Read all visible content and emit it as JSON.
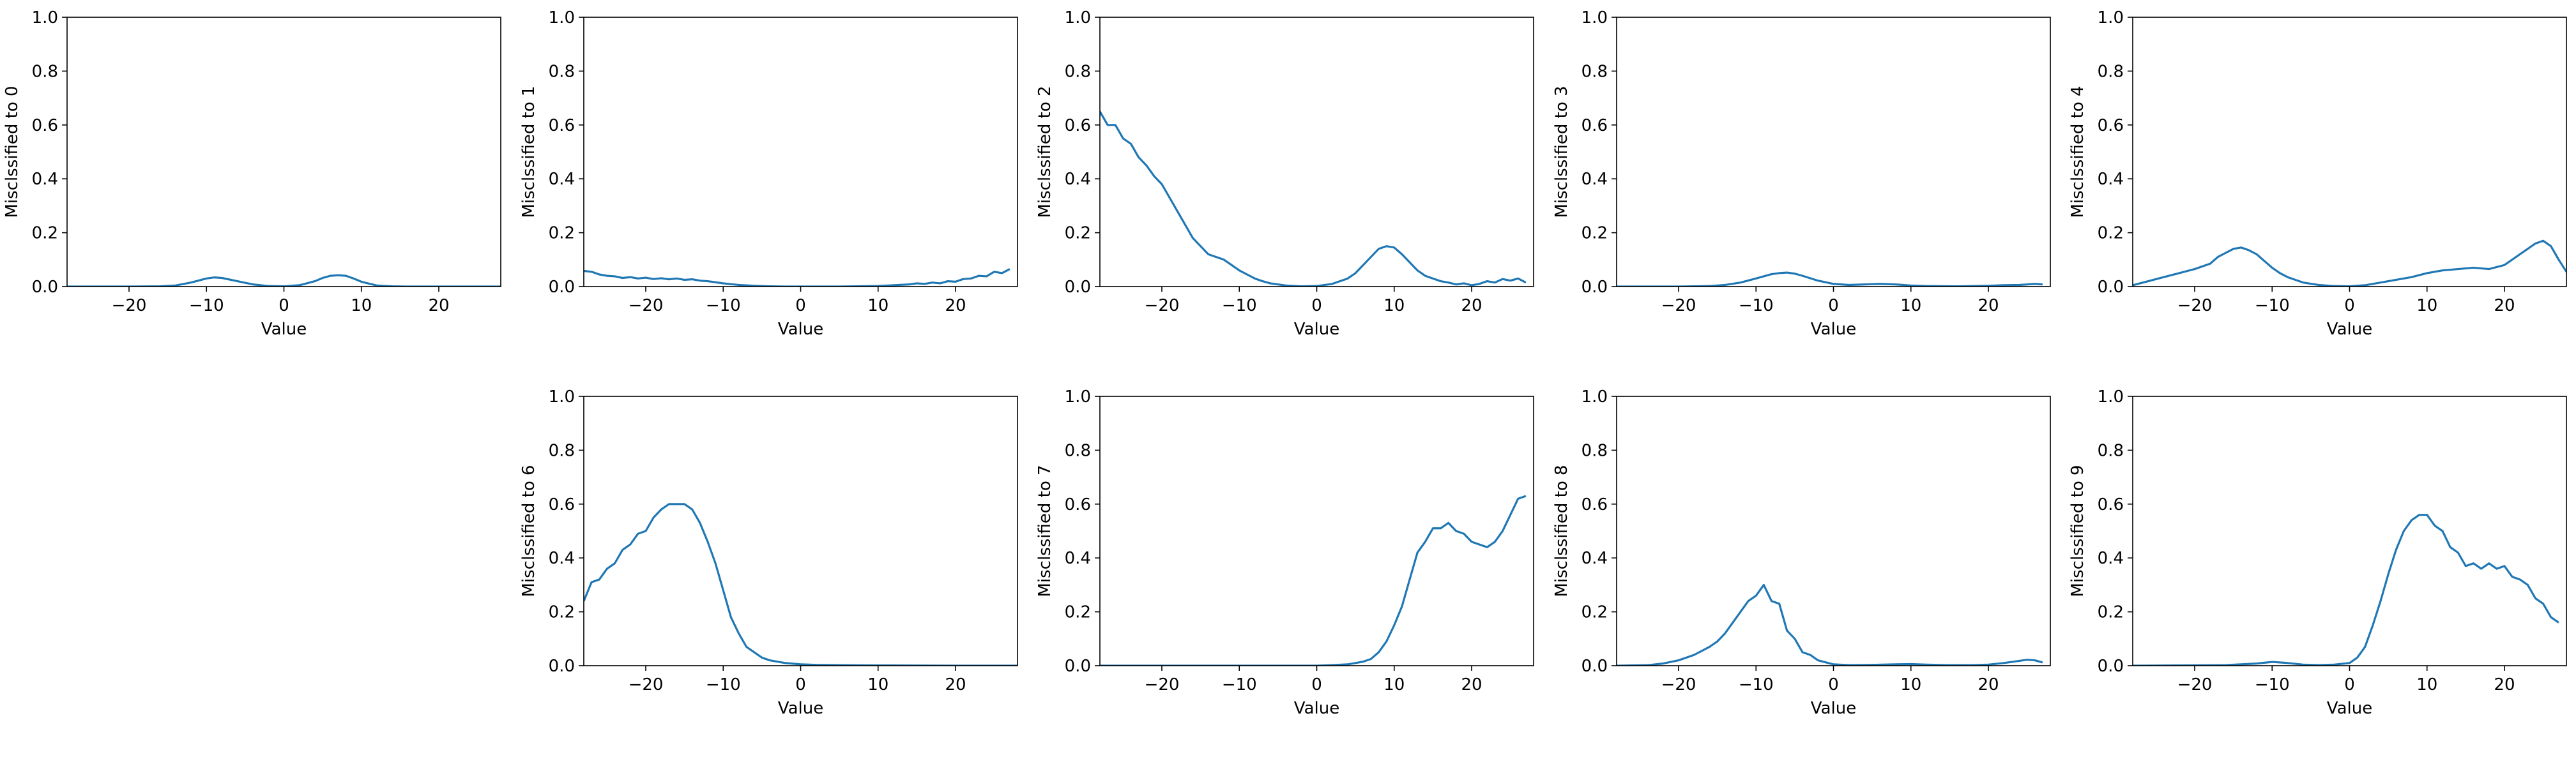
{
  "figure": {
    "background": "#ffffff",
    "line_color": "#1f77b4"
  },
  "chart_data": [
    {
      "type": "line",
      "xlabel": "Value",
      "ylabel": "Misclssified to 0",
      "xlim": [
        -28,
        28
      ],
      "ylim": [
        0,
        1
      ],
      "xticks": [
        -20,
        -10,
        0,
        10,
        20
      ],
      "xtick_labels": [
        "−20",
        "−10",
        "0",
        "10",
        "20"
      ],
      "yticks": [
        0.0,
        0.2,
        0.4,
        0.6,
        0.8,
        1.0
      ],
      "ytick_labels": [
        "0.0",
        "0.2",
        "0.4",
        "0.6",
        "0.8",
        "1.0"
      ],
      "grid": false,
      "x": [
        -28,
        -20,
        -16,
        -14,
        -12,
        -10,
        -9,
        -8,
        -6,
        -4,
        -2,
        0,
        2,
        4,
        5,
        6,
        7,
        8,
        9,
        10,
        12,
        14,
        16,
        20,
        28
      ],
      "y": [
        0,
        0,
        0.001,
        0.004,
        0.015,
        0.03,
        0.034,
        0.032,
        0.02,
        0.008,
        0.002,
        0.001,
        0.005,
        0.02,
        0.032,
        0.04,
        0.042,
        0.04,
        0.03,
        0.018,
        0.004,
        0.001,
        0,
        0,
        0
      ]
    },
    {
      "type": "line",
      "xlabel": "Value",
      "ylabel": "Misclssified to 1",
      "xlim": [
        -28,
        28
      ],
      "ylim": [
        0,
        1
      ],
      "xticks": [
        -20,
        -10,
        0,
        10,
        20
      ],
      "xtick_labels": [
        "−20",
        "−10",
        "0",
        "10",
        "20"
      ],
      "yticks": [
        0.0,
        0.2,
        0.4,
        0.6,
        0.8,
        1.0
      ],
      "ytick_labels": [
        "0.0",
        "0.2",
        "0.4",
        "0.6",
        "0.8",
        "1.0"
      ],
      "grid": false,
      "x": [
        -28,
        -27,
        -26,
        -25,
        -24,
        -23,
        -22,
        -21,
        -20,
        -19,
        -18,
        -17,
        -16,
        -15,
        -14,
        -13,
        -12,
        -11,
        -10,
        -8,
        -6,
        -4,
        -2,
        0,
        5,
        10,
        12,
        14,
        15,
        16,
        17,
        18,
        19,
        20,
        21,
        22,
        23,
        24,
        25,
        26,
        27
      ],
      "y": [
        0.058,
        0.055,
        0.045,
        0.04,
        0.038,
        0.032,
        0.035,
        0.03,
        0.033,
        0.028,
        0.031,
        0.027,
        0.03,
        0.025,
        0.027,
        0.022,
        0.02,
        0.016,
        0.012,
        0.006,
        0.003,
        0.001,
        0,
        0,
        0,
        0.002,
        0.005,
        0.008,
        0.012,
        0.01,
        0.015,
        0.012,
        0.02,
        0.018,
        0.028,
        0.03,
        0.04,
        0.038,
        0.055,
        0.05,
        0.065
      ]
    },
    {
      "type": "line",
      "xlabel": "Value",
      "ylabel": "Misclssified to 2",
      "xlim": [
        -28,
        28
      ],
      "ylim": [
        0,
        1
      ],
      "xticks": [
        -20,
        -10,
        0,
        10,
        20
      ],
      "xtick_labels": [
        "−20",
        "−10",
        "0",
        "10",
        "20"
      ],
      "yticks": [
        0.0,
        0.2,
        0.4,
        0.6,
        0.8,
        1.0
      ],
      "ytick_labels": [
        "0.0",
        "0.2",
        "0.4",
        "0.6",
        "0.8",
        "1.0"
      ],
      "grid": false,
      "x": [
        -28,
        -27,
        -26,
        -25,
        -24,
        -23,
        -22,
        -21,
        -20,
        -19,
        -18,
        -17,
        -16,
        -15,
        -14,
        -13,
        -12,
        -11,
        -10,
        -9,
        -8,
        -7,
        -6,
        -4,
        -2,
        0,
        2,
        4,
        5,
        6,
        7,
        8,
        9,
        10,
        11,
        12,
        13,
        14,
        15,
        16,
        17,
        18,
        19,
        20,
        21,
        22,
        23,
        24,
        25,
        26,
        27
      ],
      "y": [
        0.65,
        0.6,
        0.6,
        0.55,
        0.53,
        0.48,
        0.45,
        0.41,
        0.38,
        0.33,
        0.28,
        0.23,
        0.18,
        0.15,
        0.12,
        0.11,
        0.1,
        0.08,
        0.06,
        0.045,
        0.03,
        0.02,
        0.012,
        0.004,
        0.001,
        0.002,
        0.01,
        0.03,
        0.05,
        0.08,
        0.11,
        0.14,
        0.15,
        0.145,
        0.12,
        0.09,
        0.06,
        0.04,
        0.03,
        0.02,
        0.015,
        0.008,
        0.012,
        0.005,
        0.01,
        0.02,
        0.015,
        0.028,
        0.022,
        0.03,
        0.015
      ]
    },
    {
      "type": "line",
      "xlabel": "Value",
      "ylabel": "Misclssified to 3",
      "xlim": [
        -28,
        28
      ],
      "ylim": [
        0,
        1
      ],
      "xticks": [
        -20,
        -10,
        0,
        10,
        20
      ],
      "xtick_labels": [
        "−20",
        "−10",
        "0",
        "10",
        "20"
      ],
      "yticks": [
        0.0,
        0.2,
        0.4,
        0.6,
        0.8,
        1.0
      ],
      "ytick_labels": [
        "0.0",
        "0.2",
        "0.4",
        "0.6",
        "0.8",
        "1.0"
      ],
      "grid": false,
      "x": [
        -28,
        -20,
        -16,
        -14,
        -12,
        -10,
        -8,
        -7,
        -6,
        -5,
        -4,
        -2,
        0,
        2,
        4,
        6,
        8,
        10,
        12,
        16,
        20,
        22,
        24,
        26,
        27
      ],
      "y": [
        0,
        0,
        0.002,
        0.006,
        0.015,
        0.03,
        0.046,
        0.05,
        0.052,
        0.048,
        0.04,
        0.022,
        0.01,
        0.006,
        0.008,
        0.01,
        0.008,
        0.004,
        0.002,
        0.001,
        0.003,
        0.005,
        0.006,
        0.01,
        0.008
      ]
    },
    {
      "type": "line",
      "xlabel": "Value",
      "ylabel": "Misclssified to 4",
      "xlim": [
        -28,
        28
      ],
      "ylim": [
        0,
        1
      ],
      "xticks": [
        -20,
        -10,
        0,
        10,
        20
      ],
      "xtick_labels": [
        "−20",
        "−10",
        "0",
        "10",
        "20"
      ],
      "yticks": [
        0.0,
        0.2,
        0.4,
        0.6,
        0.8,
        1.0
      ],
      "ytick_labels": [
        "0.0",
        "0.2",
        "0.4",
        "0.6",
        "0.8",
        "1.0"
      ],
      "grid": false,
      "x": [
        -28,
        -26,
        -24,
        -22,
        -20,
        -18,
        -17,
        -16,
        -15,
        -14,
        -13,
        -12,
        -11,
        -10,
        -9,
        -8,
        -6,
        -4,
        -2,
        0,
        2,
        4,
        6,
        8,
        10,
        12,
        14,
        16,
        18,
        20,
        21,
        22,
        23,
        24,
        25,
        26,
        27,
        28
      ],
      "y": [
        0.005,
        0.02,
        0.035,
        0.05,
        0.065,
        0.085,
        0.11,
        0.125,
        0.14,
        0.145,
        0.135,
        0.12,
        0.095,
        0.07,
        0.05,
        0.035,
        0.015,
        0.006,
        0.002,
        0.001,
        0.005,
        0.015,
        0.025,
        0.035,
        0.05,
        0.06,
        0.065,
        0.07,
        0.065,
        0.08,
        0.1,
        0.12,
        0.14,
        0.16,
        0.17,
        0.15,
        0.1,
        0.055
      ]
    },
    {
      "type": "line",
      "xlabel": "Value",
      "ylabel": "Misclssified to 6",
      "xlim": [
        -28,
        28
      ],
      "ylim": [
        0,
        1
      ],
      "xticks": [
        -20,
        -10,
        0,
        10,
        20
      ],
      "xtick_labels": [
        "−20",
        "−10",
        "0",
        "10",
        "20"
      ],
      "yticks": [
        0.0,
        0.2,
        0.4,
        0.6,
        0.8,
        1.0
      ],
      "ytick_labels": [
        "0.0",
        "0.2",
        "0.4",
        "0.6",
        "0.8",
        "1.0"
      ],
      "grid": false,
      "x": [
        -28,
        -27,
        -26,
        -25,
        -24,
        -23,
        -22,
        -21,
        -20,
        -19,
        -18,
        -17,
        -16,
        -15,
        -14,
        -13,
        -12,
        -11,
        -10,
        -9,
        -8,
        -7,
        -6,
        -5,
        -4,
        -2,
        0,
        2,
        5,
        10,
        20,
        28
      ],
      "y": [
        0.24,
        0.31,
        0.32,
        0.36,
        0.38,
        0.43,
        0.45,
        0.49,
        0.5,
        0.55,
        0.58,
        0.6,
        0.6,
        0.6,
        0.58,
        0.53,
        0.46,
        0.38,
        0.28,
        0.18,
        0.12,
        0.07,
        0.05,
        0.03,
        0.02,
        0.01,
        0.005,
        0.003,
        0.002,
        0.001,
        0,
        0
      ]
    },
    {
      "type": "line",
      "xlabel": "Value",
      "ylabel": "Misclssified to 7",
      "xlim": [
        -28,
        28
      ],
      "ylim": [
        0,
        1
      ],
      "xticks": [
        -20,
        -10,
        0,
        10,
        20
      ],
      "xtick_labels": [
        "−20",
        "−10",
        "0",
        "10",
        "20"
      ],
      "yticks": [
        0.0,
        0.2,
        0.4,
        0.6,
        0.8,
        1.0
      ],
      "ytick_labels": [
        "0.0",
        "0.2",
        "0.4",
        "0.6",
        "0.8",
        "1.0"
      ],
      "grid": false,
      "x": [
        -28,
        -10,
        0,
        2,
        4,
        6,
        7,
        8,
        9,
        10,
        11,
        12,
        13,
        14,
        15,
        16,
        17,
        18,
        19,
        20,
        21,
        22,
        23,
        24,
        25,
        26,
        27
      ],
      "y": [
        0,
        0,
        0,
        0.002,
        0.005,
        0.015,
        0.025,
        0.05,
        0.09,
        0.15,
        0.22,
        0.32,
        0.42,
        0.46,
        0.51,
        0.51,
        0.53,
        0.5,
        0.49,
        0.46,
        0.45,
        0.44,
        0.46,
        0.5,
        0.56,
        0.62,
        0.63
      ]
    },
    {
      "type": "line",
      "xlabel": "Value",
      "ylabel": "Misclssified to 8",
      "xlim": [
        -28,
        28
      ],
      "ylim": [
        0,
        1
      ],
      "xticks": [
        -20,
        -10,
        0,
        10,
        20
      ],
      "xtick_labels": [
        "−20",
        "−10",
        "0",
        "10",
        "20"
      ],
      "yticks": [
        0.0,
        0.2,
        0.4,
        0.6,
        0.8,
        1.0
      ],
      "ytick_labels": [
        "0.0",
        "0.2",
        "0.4",
        "0.6",
        "0.8",
        "1.0"
      ],
      "grid": false,
      "x": [
        -28,
        -24,
        -22,
        -20,
        -18,
        -16,
        -15,
        -14,
        -13,
        -12,
        -11,
        -10,
        -9,
        -8,
        -7,
        -6,
        -5,
        -4,
        -3,
        -2,
        0,
        2,
        5,
        8,
        10,
        12,
        15,
        18,
        20,
        22,
        24,
        25,
        26,
        27
      ],
      "y": [
        0,
        0.002,
        0.008,
        0.02,
        0.04,
        0.07,
        0.09,
        0.12,
        0.16,
        0.2,
        0.24,
        0.26,
        0.3,
        0.24,
        0.23,
        0.13,
        0.1,
        0.05,
        0.04,
        0.02,
        0.005,
        0.002,
        0.003,
        0.005,
        0.006,
        0.004,
        0.002,
        0.002,
        0.004,
        0.01,
        0.018,
        0.022,
        0.02,
        0.012
      ]
    },
    {
      "type": "line",
      "xlabel": "Value",
      "ylabel": "Misclssified to 9",
      "xlim": [
        -28,
        28
      ],
      "ylim": [
        0,
        1
      ],
      "xticks": [
        -20,
        -10,
        0,
        10,
        20
      ],
      "xtick_labels": [
        "−20",
        "−10",
        "0",
        "10",
        "20"
      ],
      "yticks": [
        0.0,
        0.2,
        0.4,
        0.6,
        0.8,
        1.0
      ],
      "ytick_labels": [
        "0.0",
        "0.2",
        "0.4",
        "0.6",
        "0.8",
        "1.0"
      ],
      "grid": false,
      "x": [
        -28,
        -16,
        -12,
        -10,
        -8,
        -6,
        -4,
        -2,
        0,
        1,
        2,
        3,
        4,
        5,
        6,
        7,
        8,
        9,
        10,
        11,
        12,
        13,
        14,
        15,
        16,
        17,
        18,
        19,
        20,
        21,
        22,
        23,
        24,
        25,
        26,
        27
      ],
      "y": [
        0,
        0.002,
        0.008,
        0.014,
        0.01,
        0.004,
        0.002,
        0.004,
        0.01,
        0.03,
        0.07,
        0.15,
        0.24,
        0.34,
        0.43,
        0.5,
        0.54,
        0.56,
        0.56,
        0.52,
        0.5,
        0.44,
        0.42,
        0.37,
        0.38,
        0.36,
        0.38,
        0.36,
        0.37,
        0.33,
        0.32,
        0.3,
        0.25,
        0.23,
        0.18,
        0.16
      ]
    }
  ]
}
